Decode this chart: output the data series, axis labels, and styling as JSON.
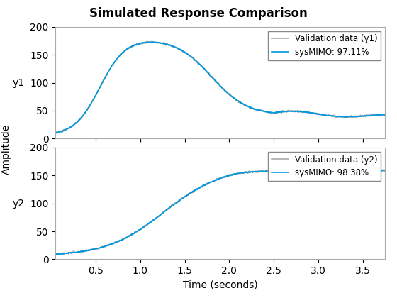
{
  "title": "Simulated Response Comparison",
  "xlabel": "Time (seconds)",
  "ylabel_common": "Amplitude",
  "ylabel1": "y1",
  "ylabel2": "y2",
  "legend1_val": "Validation data (y1)",
  "legend1_sys": "sysMIMO: 97.11%",
  "legend2_val": "Validation data (y2)",
  "legend2_sys": "sysMIMO: 98.38%",
  "color_val": "#aaaaaa",
  "color_sys": "#0099dd",
  "xlim": [
    0.05,
    3.75
  ],
  "ylim1": [
    0,
    200
  ],
  "ylim2": [
    0,
    200
  ],
  "yticks1": [
    0,
    50,
    100,
    150,
    200
  ],
  "yticks2": [
    0,
    50,
    100,
    150,
    200
  ],
  "xticks": [
    0.5,
    1.0,
    1.5,
    2.0,
    2.5,
    3.0,
    3.5
  ]
}
